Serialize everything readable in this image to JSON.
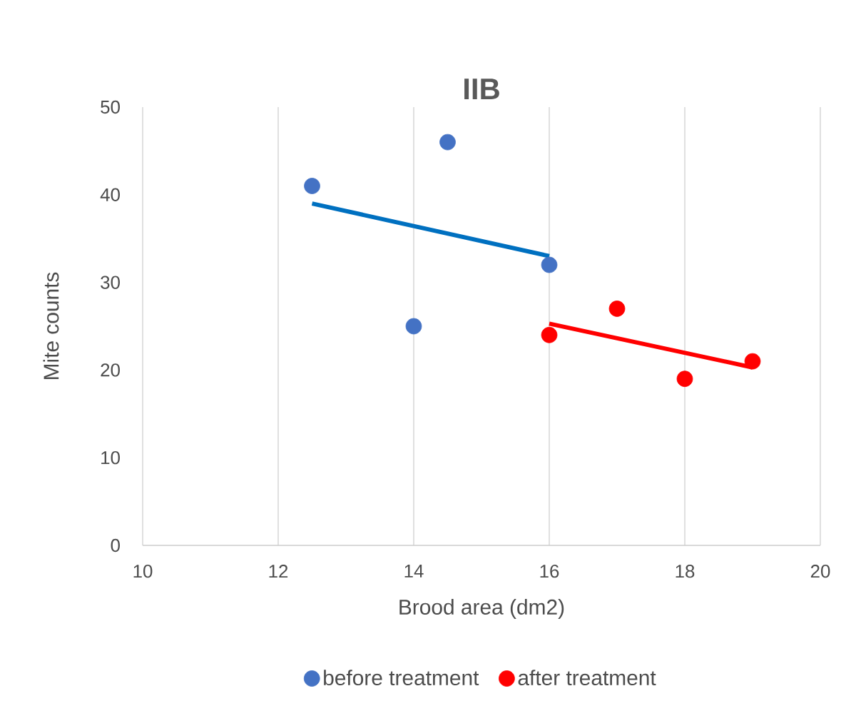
{
  "chart_data": {
    "type": "scatter",
    "title": "IIB",
    "xlabel": "Brood area (dm2)",
    "ylabel": "Mite counts",
    "xlim": [
      10,
      20
    ],
    "xticks": [
      10,
      12,
      14,
      16,
      18,
      20
    ],
    "ylim": [
      0,
      50
    ],
    "yticks": [
      0,
      10,
      20,
      30,
      40,
      50
    ],
    "grid": "x",
    "legend": "bottom",
    "series": [
      {
        "name": "before treatment",
        "marker": "circle",
        "color": "#4472c4",
        "x": [
          12.5,
          14.5,
          14,
          16
        ],
        "values": [
          41,
          46,
          25,
          32
        ]
      },
      {
        "name": "after treatment",
        "marker": "circle",
        "color": "#ff0000",
        "x": [
          16,
          17,
          18,
          19
        ],
        "values": [
          24,
          27,
          19,
          21
        ]
      },
      {
        "type": "line",
        "marker": "none",
        "color": "#0070c0",
        "x": [
          12.5,
          16
        ],
        "values": [
          39,
          33
        ]
      },
      {
        "type": "line",
        "marker": "none",
        "color": "#ff0000",
        "x": [
          16,
          19
        ],
        "values": [
          25.3,
          20.3
        ]
      }
    ]
  }
}
